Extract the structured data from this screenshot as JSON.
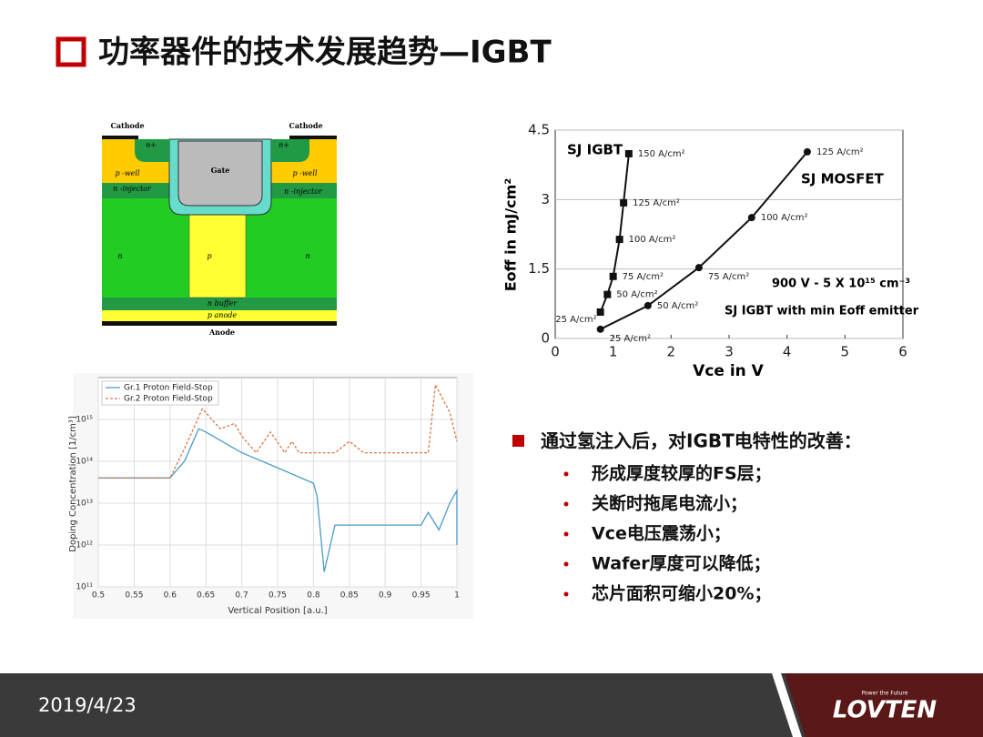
{
  "title": "功率器件的技术发展趋势—IGBT",
  "diagram": {
    "labels": [
      "Cathode",
      "Cathode",
      "n+",
      "n+",
      "Gate",
      "p -well",
      "p -well",
      "n -injector",
      "n -injector",
      "n",
      "p",
      "n",
      "n buffer",
      "p anode",
      "Anode"
    ]
  },
  "chart_data": [
    {
      "type": "line",
      "x_label": "Vce in V",
      "y_label": "Eoff in mJ/cm²",
      "annotations": [
        "SJ IGBT",
        "SJ MOSFET",
        "900 V - 5 X 10¹⁵ cm⁻³",
        "SJ IGBT with min Eoff emitter"
      ],
      "xlim": [
        0,
        6
      ],
      "ylim": [
        0,
        4.5
      ],
      "xticks": [
        0,
        1,
        2,
        3,
        4,
        5,
        6
      ],
      "yticks": [
        0,
        1.5,
        3,
        4.5
      ],
      "grid": true,
      "series": [
        {
          "name": "SJ IGBT",
          "color": "#111111",
          "marker": "square",
          "x": [
            0.78,
            0.9,
            1.0,
            1.11,
            1.18,
            1.27
          ],
          "values": [
            0.57,
            0.95,
            1.34,
            2.14,
            2.93,
            3.99
          ],
          "labels": [
            "25 A/cm²",
            "50 A/cm²",
            "75 A/cm²",
            "100 A/cm²",
            "125 A/cm²",
            "150 A/cm²"
          ]
        },
        {
          "name": "SJ MOSFET",
          "color": "#111111",
          "marker": "circle",
          "x": [
            0.78,
            1.6,
            2.48,
            3.39,
            4.35
          ],
          "values": [
            0.2,
            0.71,
            1.53,
            2.61,
            4.03
          ],
          "labels": [
            "25 A/cm²",
            "50 A/cm²",
            "75 A/cm²",
            "100 A/cm²",
            "125 A/cm²"
          ]
        }
      ]
    },
    {
      "type": "line",
      "x_label": "Vertical Position [a.u.]",
      "y_label": "Doping Concentration [1/cm³]",
      "yscale": "log",
      "xlim": [
        0.5,
        1
      ],
      "ylim": [
        100000000000.0,
        1e+16
      ],
      "xticks": [
        0.5,
        0.55,
        0.6,
        0.65,
        0.7,
        0.75,
        0.8,
        0.85,
        0.9,
        0.95,
        1
      ],
      "yticks": [
        {
          "value": 100000000000.0,
          "label": "10¹¹"
        },
        {
          "value": 1000000000000.0,
          "label": "10¹²"
        },
        {
          "value": 10000000000000.0,
          "label": "10¹³"
        },
        {
          "value": 100000000000000.0,
          "label": "10¹⁴"
        },
        {
          "value": 1000000000000000.0,
          "label": "10¹⁵"
        }
      ],
      "grid": true,
      "legend": "upper left",
      "series": [
        {
          "name": "Gr.1 Proton Field-Stop",
          "color": "#4a9cc8",
          "dashed": false,
          "x": [
            0.5,
            0.6,
            0.62,
            0.64,
            0.65,
            0.7,
            0.75,
            0.8,
            0.805,
            0.815,
            0.83,
            0.85,
            0.95,
            0.96,
            0.975,
            0.99,
            1.0,
            1.0
          ],
          "values": [
            40000000000000.0,
            40000000000000.0,
            100000000000000.0,
            600000000000000.0,
            500000000000000.0,
            160000000000000.0,
            70000000000000.0,
            30000000000000.0,
            15000000000000.0,
            230000000000.0,
            3000000000000.0,
            3000000000000.0,
            3000000000000.0,
            6000000000000.0,
            2300000000000.0,
            10000000000000.0,
            20000000000000.0,
            1000000000000.0
          ]
        },
        {
          "name": "Gr.2 Proton Field-Stop",
          "color": "#d9784a",
          "dashed": true,
          "x": [
            0.5,
            0.6,
            0.62,
            0.645,
            0.67,
            0.69,
            0.7,
            0.72,
            0.74,
            0.76,
            0.77,
            0.78,
            0.83,
            0.85,
            0.87,
            0.96,
            0.97,
            0.99,
            1.0
          ],
          "values": [
            40000000000000.0,
            40000000000000.0,
            200000000000000.0,
            1800000000000000.0,
            600000000000000.0,
            800000000000000.0,
            400000000000000.0,
            160000000000000.0,
            500000000000000.0,
            160000000000000.0,
            300000000000000.0,
            160000000000000.0,
            160000000000000.0,
            300000000000000.0,
            160000000000000.0,
            160000000000000.0,
            6700000000000000.0,
            1500000000000000.0,
            300000000000000.0
          ]
        }
      ]
    }
  ],
  "bullets": {
    "main": "通过氢注入后，对IGBT电特性的改善：",
    "items": [
      "形成厚度较厚的FS层；",
      "关断时拖尾电流小；",
      "Vce电压震荡小；",
      "Wafer厚度可以降低；",
      "芯片面积可缩小20%；"
    ]
  },
  "footer": {
    "date": "2019/4/23",
    "logo": "LOVTEN",
    "slogan": "Power the Future"
  }
}
